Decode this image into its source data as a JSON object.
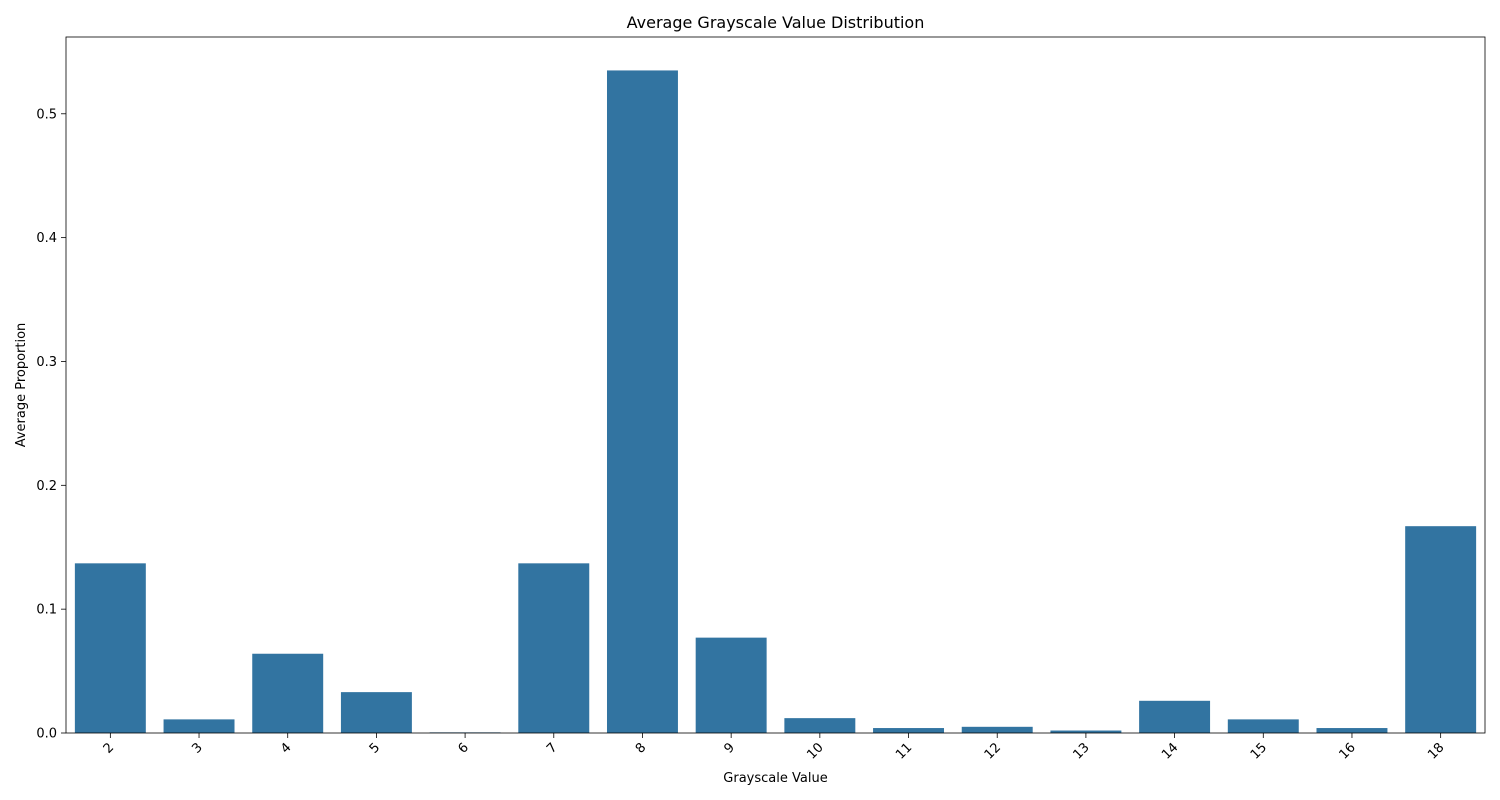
{
  "chart_data": {
    "type": "bar",
    "title": "Average Grayscale Value Distribution",
    "xlabel": "Grayscale Value",
    "ylabel": "Average Proportion",
    "categories": [
      "2",
      "3",
      "4",
      "5",
      "6",
      "7",
      "8",
      "9",
      "10",
      "11",
      "12",
      "13",
      "14",
      "15",
      "16",
      "18"
    ],
    "values": [
      0.137,
      0.011,
      0.064,
      0.033,
      0.0005,
      0.137,
      0.535,
      0.077,
      0.012,
      0.004,
      0.005,
      0.002,
      0.026,
      0.011,
      0.004,
      0.167
    ],
    "ylim": [
      0,
      0.562
    ],
    "yticks": [
      0.0,
      0.1,
      0.2,
      0.3,
      0.4,
      0.5
    ],
    "ytick_labels": [
      "0.0",
      "0.1",
      "0.2",
      "0.3",
      "0.4",
      "0.5"
    ],
    "xtick_rotation": 45,
    "bar_color": "#3274a1",
    "grid": false,
    "legend": false
  }
}
